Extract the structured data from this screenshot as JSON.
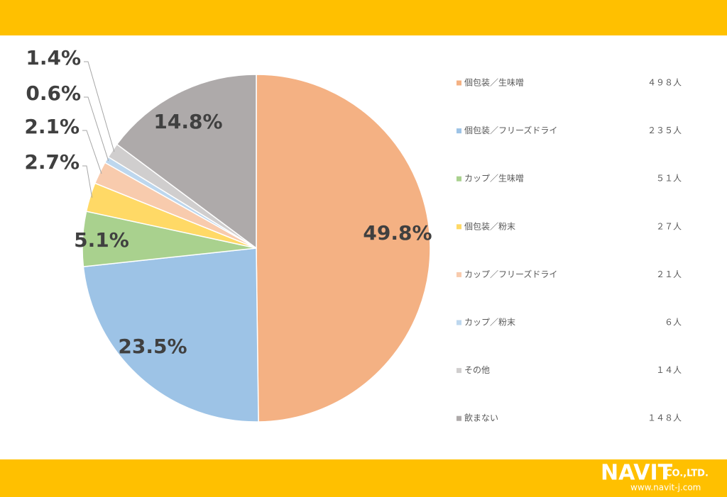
{
  "chart_data": {
    "type": "pie",
    "categories": [
      "個包装／生味噌",
      "個包装／フリーズドライ",
      "カップ／生味噌",
      "個包装／粉末",
      "カップ／フリーズドライ",
      "カップ／粉末",
      "その他",
      "飲まない"
    ],
    "values": [
      49.8,
      23.5,
      5.1,
      2.7,
      2.1,
      0.6,
      1.4,
      14.8
    ],
    "value_labels": [
      "49.8%",
      "23.5%",
      "5.1%",
      "2.7%",
      "2.1%",
      "0.6%",
      "1.4%",
      "14.8%"
    ],
    "counts": [
      498,
      235,
      51,
      27,
      21,
      6,
      14,
      148
    ],
    "count_labels": [
      "４９８人",
      "２３５人",
      "５１人",
      "２７人",
      "２１人",
      "６人",
      "１４人",
      "１４８人"
    ],
    "colors": [
      "#f4b183",
      "#9dc3e6",
      "#a9d18e",
      "#ffd966",
      "#f8cbad",
      "#bdd7ee",
      "#d0cece",
      "#aeaaaa"
    ],
    "legend": "right"
  },
  "footer": {
    "logo": "NAVIT",
    "company": "CO.,LTD.",
    "url": "www.navit-j.com"
  }
}
